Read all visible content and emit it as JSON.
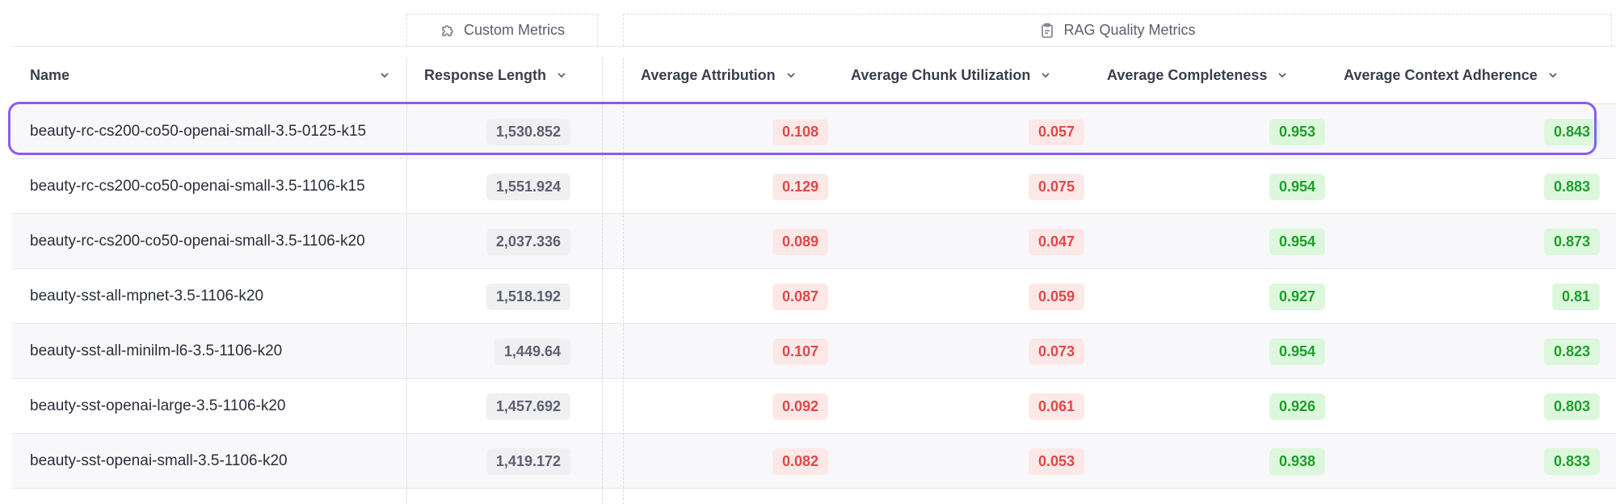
{
  "groups": {
    "custom": {
      "label": "Custom Metrics",
      "icon": "puzzle-icon"
    },
    "rag": {
      "label": "RAG Quality Metrics",
      "icon": "clipboard-check-icon"
    }
  },
  "columns": {
    "name": "Name",
    "response_length": "Response Length",
    "attribution": "Average Attribution",
    "chunk_utilization": "Average Chunk Utilization",
    "completeness": "Average Completeness",
    "context_adherence": "Average Context Adherence"
  },
  "rows": [
    {
      "name": "beauty-rc-cs200-co50-openai-small-3.5-0125-k15",
      "response_length": "1,530.852",
      "attribution": "0.108",
      "chunk_utilization": "0.057",
      "completeness": "0.953",
      "context_adherence": "0.843"
    },
    {
      "name": "beauty-rc-cs200-co50-openai-small-3.5-1106-k15",
      "response_length": "1,551.924",
      "attribution": "0.129",
      "chunk_utilization": "0.075",
      "completeness": "0.954",
      "context_adherence": "0.883"
    },
    {
      "name": "beauty-rc-cs200-co50-openai-small-3.5-1106-k20",
      "response_length": "2,037.336",
      "attribution": "0.089",
      "chunk_utilization": "0.047",
      "completeness": "0.954",
      "context_adherence": "0.873"
    },
    {
      "name": "beauty-sst-all-mpnet-3.5-1106-k20",
      "response_length": "1,518.192",
      "attribution": "0.087",
      "chunk_utilization": "0.059",
      "completeness": "0.927",
      "context_adherence": "0.81"
    },
    {
      "name": "beauty-sst-all-minilm-l6-3.5-1106-k20",
      "response_length": "1,449.64",
      "attribution": "0.107",
      "chunk_utilization": "0.073",
      "completeness": "0.954",
      "context_adherence": "0.823"
    },
    {
      "name": "beauty-sst-openai-large-3.5-1106-k20",
      "response_length": "1,457.692",
      "attribution": "0.092",
      "chunk_utilization": "0.061",
      "completeness": "0.926",
      "context_adherence": "0.803"
    },
    {
      "name": "beauty-sst-openai-small-3.5-1106-k20",
      "response_length": "1,419.172",
      "attribution": "0.082",
      "chunk_utilization": "0.053",
      "completeness": "0.938",
      "context_adherence": "0.833"
    }
  ],
  "colors": {
    "bad": "#e04848",
    "good": "#1f9e2c",
    "selection": "#8a5cf0"
  }
}
